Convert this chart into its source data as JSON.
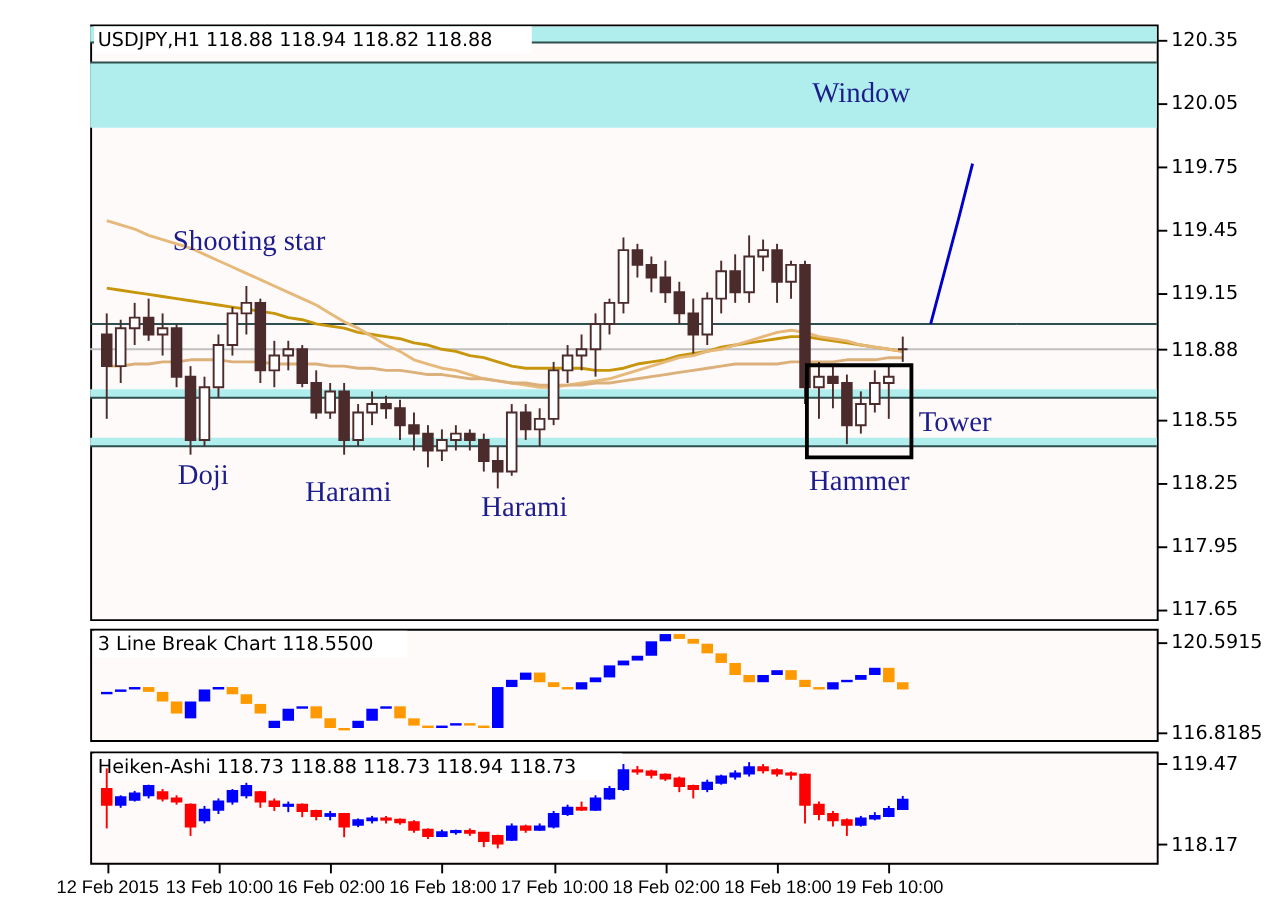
{
  "chart_data": [
    {
      "type": "candlestick",
      "title": "USDJPY,H1  118.88 118.94 118.82 118.88",
      "categories": [
        null,
        null,
        null,
        null,
        null,
        null,
        null,
        null,
        null,
        null,
        null,
        null,
        null,
        null,
        null,
        null,
        null,
        null,
        null,
        null,
        null,
        null,
        null,
        null,
        null,
        null,
        null,
        null,
        null,
        null,
        null,
        null,
        null,
        null,
        null,
        null,
        null,
        null,
        null,
        null,
        null,
        null,
        null,
        null,
        null,
        null,
        null,
        null,
        null,
        null,
        null,
        null,
        null,
        null,
        null,
        null,
        null,
        null,
        null,
        null,
        null,
        null,
        null,
        null,
        null,
        null,
        null,
        null,
        null,
        null,
        null,
        null,
        null,
        null,
        null
      ],
      "ohlc": [
        [
          118.95,
          119.05,
          118.55,
          118.8
        ],
        [
          118.8,
          119.02,
          118.72,
          118.98
        ],
        [
          118.98,
          119.1,
          118.9,
          119.03
        ],
        [
          119.03,
          119.12,
          118.92,
          118.95
        ],
        [
          118.95,
          119.05,
          118.85,
          118.98
        ],
        [
          118.98,
          119.0,
          118.7,
          118.75
        ],
        [
          118.75,
          118.8,
          118.38,
          118.45
        ],
        [
          118.45,
          118.75,
          118.42,
          118.7
        ],
        [
          118.7,
          118.95,
          118.65,
          118.9
        ],
        [
          118.9,
          119.08,
          118.85,
          119.05
        ],
        [
          119.05,
          119.18,
          118.95,
          119.1
        ],
        [
          119.1,
          119.12,
          118.72,
          118.78
        ],
        [
          118.78,
          118.92,
          118.7,
          118.85
        ],
        [
          118.85,
          118.92,
          118.78,
          118.88
        ],
        [
          118.88,
          118.9,
          118.7,
          118.72
        ],
        [
          118.72,
          118.78,
          118.55,
          118.58
        ],
        [
          118.58,
          118.72,
          118.55,
          118.68
        ],
        [
          118.68,
          118.72,
          118.38,
          118.45
        ],
        [
          118.45,
          118.62,
          118.42,
          118.58
        ],
        [
          118.58,
          118.68,
          118.52,
          118.62
        ],
        [
          118.62,
          118.66,
          118.55,
          118.6
        ],
        [
          118.6,
          118.64,
          118.45,
          118.52
        ],
        [
          118.52,
          118.58,
          118.4,
          118.48
        ],
        [
          118.48,
          118.52,
          118.32,
          118.4
        ],
        [
          118.4,
          118.5,
          118.35,
          118.45
        ],
        [
          118.45,
          118.52,
          118.4,
          118.48
        ],
        [
          118.48,
          118.5,
          118.4,
          118.45
        ],
        [
          118.45,
          118.48,
          118.3,
          118.35
        ],
        [
          118.35,
          118.42,
          118.22,
          118.3
        ],
        [
          118.3,
          118.62,
          118.28,
          118.58
        ],
        [
          118.58,
          118.62,
          118.45,
          118.5
        ],
        [
          118.5,
          118.6,
          118.42,
          118.55
        ],
        [
          118.55,
          118.82,
          118.52,
          118.78
        ],
        [
          118.78,
          118.9,
          118.72,
          118.85
        ],
        [
          118.85,
          118.95,
          118.78,
          118.88
        ],
        [
          118.88,
          119.05,
          118.75,
          119.0
        ],
        [
          119.0,
          119.12,
          118.95,
          119.1
        ],
        [
          119.1,
          119.41,
          119.05,
          119.35
        ],
        [
          119.35,
          119.38,
          119.22,
          119.28
        ],
        [
          119.28,
          119.32,
          119.15,
          119.22
        ],
        [
          119.22,
          119.3,
          119.1,
          119.15
        ],
        [
          119.15,
          119.2,
          119.0,
          119.05
        ],
        [
          119.05,
          119.12,
          118.86,
          118.95
        ],
        [
          118.95,
          119.15,
          118.9,
          119.12
        ],
        [
          119.12,
          119.3,
          119.05,
          119.25
        ],
        [
          119.25,
          119.33,
          119.1,
          119.15
        ],
        [
          119.15,
          119.42,
          119.1,
          119.32
        ],
        [
          119.32,
          119.4,
          119.25,
          119.35
        ],
        [
          119.35,
          119.38,
          119.1,
          119.2
        ],
        [
          119.2,
          119.3,
          119.12,
          119.28
        ],
        [
          119.28,
          119.3,
          118.62,
          118.7
        ],
        [
          118.7,
          118.82,
          118.55,
          118.75
        ],
        [
          118.75,
          118.8,
          118.6,
          118.72
        ],
        [
          118.72,
          118.76,
          118.43,
          118.52
        ],
        [
          118.52,
          118.68,
          118.48,
          118.62
        ],
        [
          118.62,
          118.78,
          118.58,
          118.72
        ],
        [
          118.72,
          118.8,
          118.55,
          118.75
        ],
        [
          118.88,
          118.94,
          118.82,
          118.88
        ],
        null,
        null,
        null,
        null,
        null,
        null,
        null,
        null,
        null,
        null,
        null,
        null,
        null,
        null,
        null,
        null,
        null
      ],
      "color": "#4b2b2b",
      "colors": [
        "#4b2b2b",
        "#ffffff",
        "#ffffff",
        "#4b2b2b",
        "#ffffff",
        "#4b2b2b",
        "#4b2b2b",
        "#ffffff",
        "#ffffff",
        "#ffffff",
        "#ffffff",
        "#4b2b2b",
        "#ffffff",
        "#ffffff",
        "#4b2b2b",
        "#4b2b2b",
        "#ffffff",
        "#4b2b2b",
        "#ffffff",
        "#ffffff",
        "#4b2b2b",
        "#4b2b2b",
        "#4b2b2b",
        "#4b2b2b",
        "#ffffff",
        "#ffffff",
        "#4b2b2b",
        "#4b2b2b",
        "#4b2b2b",
        "#ffffff",
        "#4b2b2b",
        "#ffffff",
        "#ffffff",
        "#ffffff",
        "#ffffff",
        "#ffffff",
        "#ffffff",
        "#ffffff",
        "#4b2b2b",
        "#4b2b2b",
        "#4b2b2b",
        "#4b2b2b",
        "#4b2b2b",
        "#ffffff",
        "#ffffff",
        "#4b2b2b",
        "#ffffff",
        "#ffffff",
        "#4b2b2b",
        "#ffffff",
        "#4b2b2b",
        "#ffffff",
        "#4b2b2b",
        "#4b2b2b",
        "#ffffff",
        "#ffffff",
        "#ffffff",
        "#4b2b2b",
        null,
        null,
        null,
        null,
        null,
        null,
        null,
        null,
        null,
        null,
        null,
        null,
        null,
        null,
        null,
        null,
        null
      ],
      "series": [
        {
          "type": "line",
          "color": "#c8960c",
          "values": [
            119.17,
            119.16,
            119.15,
            119.14,
            119.13,
            119.12,
            119.11,
            119.1,
            119.09,
            119.08,
            119.07,
            119.06,
            119.05,
            119.03,
            119.02,
            119.0,
            118.99,
            118.98,
            118.96,
            118.95,
            118.94,
            118.93,
            118.91,
            118.9,
            118.88,
            118.87,
            118.85,
            118.84,
            118.82,
            118.8,
            118.79,
            118.79,
            118.79,
            118.79,
            118.79,
            118.78,
            118.78,
            118.79,
            118.81,
            118.82,
            118.83,
            118.85,
            118.86,
            118.87,
            118.89,
            118.9,
            118.91,
            118.92,
            118.93,
            118.94,
            118.94,
            118.93,
            118.92,
            118.91,
            118.9,
            118.89,
            118.88,
            118.87,
            null,
            null,
            null,
            null,
            null,
            null,
            null,
            null,
            null,
            null,
            null,
            null,
            null,
            null,
            null,
            null,
            null
          ]
        },
        {
          "type": "line",
          "color": "#e6b87a",
          "values": [
            119.49,
            119.47,
            119.45,
            119.42,
            119.4,
            119.38,
            119.36,
            119.33,
            119.3,
            119.27,
            119.24,
            119.21,
            119.18,
            119.15,
            119.12,
            119.09,
            119.05,
            119.01,
            118.98,
            118.94,
            118.9,
            118.87,
            118.83,
            118.81,
            118.79,
            118.78,
            118.76,
            118.74,
            118.73,
            118.72,
            118.71,
            118.7,
            118.7,
            118.71,
            118.72,
            118.73,
            118.74,
            118.76,
            118.78,
            118.8,
            118.82,
            118.84,
            118.85,
            118.87,
            118.88,
            118.9,
            118.92,
            118.94,
            118.96,
            118.97,
            118.96,
            118.94,
            118.93,
            118.92,
            118.9,
            118.89,
            118.88,
            118.87,
            null,
            null,
            null,
            null,
            null,
            null,
            null,
            null,
            null,
            null,
            null,
            null,
            null,
            null,
            null,
            null,
            null
          ]
        },
        {
          "type": "line",
          "color": "#dcb07a",
          "values": [
            118.8,
            118.8,
            118.81,
            118.81,
            118.82,
            118.82,
            118.83,
            118.83,
            118.83,
            118.82,
            118.82,
            118.82,
            118.81,
            118.81,
            118.81,
            118.81,
            118.8,
            118.8,
            118.79,
            118.79,
            118.78,
            118.78,
            118.77,
            118.76,
            118.76,
            118.75,
            118.74,
            118.74,
            118.73,
            118.72,
            118.72,
            118.71,
            118.71,
            118.71,
            118.71,
            118.72,
            118.72,
            118.73,
            118.74,
            118.75,
            118.76,
            118.77,
            118.78,
            118.79,
            118.8,
            118.81,
            118.81,
            118.81,
            118.81,
            118.82,
            118.82,
            118.82,
            118.82,
            118.83,
            118.83,
            118.83,
            118.84,
            118.84,
            null,
            null,
            null,
            null,
            null,
            null,
            null,
            null,
            null,
            null,
            null,
            null,
            null,
            null,
            null,
            null,
            null
          ]
        },
        {
          "type": "line",
          "color": "#0000cd",
          "values": [
            null,
            null,
            null,
            null,
            null,
            null,
            null,
            null,
            null,
            null,
            null,
            null,
            null,
            null,
            null,
            null,
            null,
            null,
            null,
            null,
            null,
            null,
            null,
            null,
            null,
            null,
            null,
            null,
            null,
            null,
            null,
            null,
            null,
            null,
            null,
            null,
            null,
            null,
            null,
            null,
            null,
            null,
            null,
            null,
            null,
            null,
            null,
            null,
            null,
            null,
            null,
            null,
            null,
            null,
            null,
            null,
            null,
            null,
            null,
            119.0,
            119.25,
            119.5,
            119.76,
            null,
            null,
            null,
            null,
            null,
            null,
            null,
            null,
            null,
            null,
            null,
            null
          ]
        }
      ],
      "bands": [
        {
          "axis": "y",
          "from": 120.335,
          "to": 120.41,
          "color": "#b0eeee"
        },
        {
          "axis": "y",
          "from": 119.93,
          "to": 120.24,
          "color": "#b0eeee"
        },
        {
          "axis": "y",
          "from": 118.65,
          "to": 118.69,
          "color": "#b0eeee"
        },
        {
          "axis": "y",
          "from": 118.42,
          "to": 118.46,
          "color": "#b0eeee"
        }
      ],
      "ref_lines": [
        {
          "axis": "y",
          "value": 120.335,
          "color": "#2f4f4f"
        },
        {
          "axis": "y",
          "value": 120.24,
          "color": "#2f4f4f"
        },
        {
          "axis": "y",
          "value": 119.0,
          "color": "#2f4f4f"
        },
        {
          "axis": "y",
          "value": 118.65,
          "color": "#2f4f4f"
        },
        {
          "axis": "y",
          "value": 118.42,
          "color": "#2f4f4f"
        },
        {
          "axis": "y",
          "value": 118.88,
          "color": "#c0c0c0"
        }
      ],
      "annotations": [
        "Window",
        {
          "text": "Shooting star",
          "y": 119.18
        },
        "Doji",
        {
          "text": "Harami",
          "y": 118.38
        },
        "Harami",
        {
          "text": "Hammer",
          "y": 118.43
        },
        "Tower"
      ],
      "ylim": [
        117.6,
        120.42
      ],
      "yticks": [
        120.35,
        120.05,
        119.75,
        119.45,
        119.15,
        118.88,
        118.55,
        118.25,
        117.95,
        117.65
      ],
      "tick_labels": "y"
    },
    {
      "type": "bar",
      "title": "3 Line Break Chart 118.5500",
      "categories": [
        null,
        null,
        null,
        null,
        null,
        null,
        null,
        null,
        null,
        null,
        null,
        null,
        null,
        null,
        null,
        null,
        null,
        null,
        null,
        null,
        null,
        null,
        null,
        null,
        null,
        null,
        null,
        null,
        null,
        null,
        null,
        null,
        null,
        null,
        null,
        null,
        null,
        null,
        null,
        null,
        null,
        null,
        null,
        null,
        null,
        null,
        null,
        null,
        null,
        null,
        null,
        null,
        null,
        null,
        null,
        null,
        null,
        null,
        null,
        null,
        null,
        null,
        null,
        null,
        null,
        null,
        null,
        null,
        null,
        null,
        null,
        null,
        null,
        null,
        null
      ],
      "base": [
        118.4,
        118.5,
        118.6,
        118.7,
        118.5,
        118.1,
        117.4,
        118.1,
        118.6,
        118.7,
        118.4,
        118.0,
        117.0,
        117.3,
        117.8,
        117.9,
        117.4,
        117.0,
        117.0,
        117.3,
        117.8,
        117.9,
        117.4,
        117.1,
        117.0,
        117.1,
        117.2,
        117.1,
        117.0,
        118.7,
        119.0,
        119.3,
        118.9,
        118.7,
        118.6,
        118.9,
        119.1,
        119.6,
        119.8,
        120.0,
        120.6,
        120.9,
        120.7,
        120.5,
        120.1,
        119.7,
        119.2,
        118.9,
        119.2,
        119.4,
        119.0,
        118.7,
        118.6,
        118.9,
        119.0,
        119.2,
        119.5,
        118.9,
        null,
        null,
        null,
        null,
        null,
        null,
        null,
        null,
        null,
        null,
        null,
        null,
        null,
        null,
        null,
        null,
        null
      ],
      "values": [
        0.1,
        0.1,
        0.1,
        -0.2,
        -0.4,
        -0.5,
        0.7,
        0.5,
        0.1,
        -0.3,
        -0.4,
        -0.4,
        0.3,
        0.5,
        0.1,
        -0.5,
        -0.4,
        -0.1,
        0.3,
        0.5,
        0.1,
        -0.5,
        -0.3,
        -0.1,
        0.1,
        0.1,
        -0.1,
        -0.1,
        1.7,
        0.3,
        0.3,
        -0.4,
        -0.2,
        -0.1,
        0.3,
        0.2,
        0.5,
        0.2,
        0.2,
        0.6,
        0.3,
        -0.2,
        -0.2,
        -0.4,
        -0.4,
        -0.5,
        -0.3,
        0.3,
        0.2,
        -0.4,
        -0.3,
        -0.1,
        0.3,
        0.1,
        0.2,
        0.3,
        -0.6,
        -0.3,
        null,
        null,
        null,
        null,
        null,
        null,
        null,
        null,
        null,
        null,
        null,
        null,
        null,
        null,
        null,
        null,
        null
      ],
      "colors": [
        "#0000ff",
        "#0000ff",
        "#0000ff",
        "#ff9900",
        "#ff9900",
        "#ff9900",
        "#0000ff",
        "#0000ff",
        "#0000ff",
        "#ff9900",
        "#ff9900",
        "#ff9900",
        "#0000ff",
        "#0000ff",
        "#0000ff",
        "#ff9900",
        "#ff9900",
        "#ff9900",
        "#0000ff",
        "#0000ff",
        "#0000ff",
        "#ff9900",
        "#ff9900",
        "#ff9900",
        "#0000ff",
        "#0000ff",
        "#ff9900",
        "#ff9900",
        "#0000ff",
        "#0000ff",
        "#0000ff",
        "#ff9900",
        "#ff9900",
        "#ff9900",
        "#0000ff",
        "#0000ff",
        "#0000ff",
        "#0000ff",
        "#0000ff",
        "#0000ff",
        "#0000ff",
        "#ff9900",
        "#ff9900",
        "#ff9900",
        "#ff9900",
        "#ff9900",
        "#ff9900",
        "#0000ff",
        "#0000ff",
        "#ff9900",
        "#ff9900",
        "#ff9900",
        "#0000ff",
        "#0000ff",
        "#0000ff",
        "#0000ff",
        "#ff9900",
        "#ff9900",
        null,
        null,
        null,
        null,
        null,
        null,
        null,
        null,
        null,
        null,
        null,
        null,
        null,
        null,
        null,
        null,
        null
      ],
      "ylim": [
        116.5,
        121.12
      ],
      "yticks": [
        120.5915,
        116.8185
      ],
      "tick_labels": "y"
    },
    {
      "type": "candlestick",
      "title": "Heiken-Ashi 118.73 118.88 118.73 118.94 118.73",
      "categories": [
        "12 Feb 2015",
        null,
        null,
        null,
        null,
        null,
        null,
        null,
        "13 Feb 10:00",
        null,
        null,
        null,
        null,
        null,
        null,
        null,
        "16 Feb 02:00",
        null,
        null,
        null,
        null,
        null,
        null,
        null,
        "16 Feb 18:00",
        null,
        null,
        null,
        null,
        null,
        null,
        null,
        "17 Feb 10:00",
        null,
        null,
        null,
        null,
        null,
        null,
        null,
        "18 Feb 02:00",
        null,
        null,
        null,
        null,
        null,
        null,
        null,
        "18 Feb 18:00",
        null,
        null,
        null,
        null,
        null,
        null,
        null,
        "19 Feb 10:00",
        null,
        null,
        null,
        null,
        null,
        null,
        null,
        null,
        null,
        null,
        null,
        null,
        null,
        null,
        null,
        null,
        null,
        null
      ],
      "ohlc": [
        [
          119.05,
          119.38,
          118.42,
          118.8
        ],
        [
          118.8,
          118.95,
          118.75,
          118.92
        ],
        [
          118.88,
          119.02,
          118.85,
          118.98
        ],
        [
          118.95,
          119.12,
          118.9,
          119.1
        ],
        [
          119.0,
          119.05,
          118.85,
          118.9
        ],
        [
          118.9,
          118.95,
          118.8,
          118.85
        ],
        [
          118.8,
          118.82,
          118.3,
          118.45
        ],
        [
          118.55,
          118.78,
          118.5,
          118.72
        ],
        [
          118.72,
          118.9,
          118.65,
          118.85
        ],
        [
          118.85,
          119.05,
          118.8,
          119.02
        ],
        [
          118.95,
          119.15,
          118.9,
          119.1
        ],
        [
          119.0,
          119.02,
          118.75,
          118.85
        ],
        [
          118.85,
          118.9,
          118.7,
          118.78
        ],
        [
          118.78,
          118.85,
          118.68,
          118.8
        ],
        [
          118.8,
          118.82,
          118.6,
          118.7
        ],
        [
          118.7,
          118.72,
          118.55,
          118.62
        ],
        [
          118.62,
          118.7,
          118.55,
          118.65
        ],
        [
          118.65,
          118.66,
          118.28,
          118.45
        ],
        [
          118.48,
          118.58,
          118.44,
          118.55
        ],
        [
          118.55,
          118.62,
          118.5,
          118.58
        ],
        [
          118.58,
          118.62,
          118.5,
          118.56
        ],
        [
          118.56,
          118.58,
          118.48,
          118.52
        ],
        [
          118.52,
          118.55,
          118.35,
          118.4
        ],
        [
          118.4,
          118.42,
          118.25,
          118.3
        ],
        [
          118.3,
          118.4,
          118.28,
          118.36
        ],
        [
          118.36,
          118.4,
          118.32,
          118.38
        ],
        [
          118.38,
          118.42,
          118.3,
          118.35
        ],
        [
          118.35,
          118.36,
          118.12,
          118.22
        ],
        [
          118.3,
          118.32,
          118.1,
          118.18
        ],
        [
          118.24,
          118.5,
          118.22,
          118.45
        ],
        [
          118.45,
          118.48,
          118.35,
          118.4
        ],
        [
          118.4,
          118.5,
          118.38,
          118.45
        ],
        [
          118.45,
          118.7,
          118.42,
          118.65
        ],
        [
          118.65,
          118.8,
          118.62,
          118.75
        ],
        [
          118.75,
          118.85,
          118.7,
          118.72
        ],
        [
          118.72,
          118.95,
          118.7,
          118.9
        ],
        [
          118.9,
          119.1,
          118.88,
          119.05
        ],
        [
          119.05,
          119.45,
          119.02,
          119.35
        ],
        [
          119.35,
          119.42,
          119.28,
          119.33
        ],
        [
          119.33,
          119.36,
          119.22,
          119.28
        ],
        [
          119.28,
          119.3,
          119.18,
          119.22
        ],
        [
          119.22,
          119.25,
          119.0,
          119.1
        ],
        [
          119.1,
          119.12,
          118.9,
          119.05
        ],
        [
          119.05,
          119.2,
          119.0,
          119.15
        ],
        [
          119.15,
          119.28,
          119.12,
          119.25
        ],
        [
          119.25,
          119.35,
          119.2,
          119.3
        ],
        [
          119.3,
          119.48,
          119.25,
          119.4
        ],
        [
          119.4,
          119.45,
          119.3,
          119.35
        ],
        [
          119.35,
          119.38,
          119.25,
          119.3
        ],
        [
          119.3,
          119.33,
          119.2,
          119.28
        ],
        [
          119.28,
          119.3,
          118.5,
          118.8
        ],
        [
          118.8,
          118.85,
          118.55,
          118.65
        ],
        [
          118.65,
          118.7,
          118.45,
          118.55
        ],
        [
          118.55,
          118.58,
          118.3,
          118.48
        ],
        [
          118.48,
          118.62,
          118.45,
          118.58
        ],
        [
          118.58,
          118.68,
          118.55,
          118.62
        ],
        [
          118.62,
          118.78,
          118.6,
          118.73
        ],
        [
          118.73,
          118.94,
          118.73,
          118.88
        ],
        null,
        null,
        null,
        null,
        null,
        null,
        null,
        null,
        null,
        null,
        null,
        null,
        null,
        null,
        null,
        null,
        null
      ],
      "colors": [
        "#ff0000",
        "#0000ff",
        "#0000ff",
        "#0000ff",
        "#ff0000",
        "#ff0000",
        "#ff0000",
        "#0000ff",
        "#0000ff",
        "#0000ff",
        "#0000ff",
        "#ff0000",
        "#ff0000",
        "#0000ff",
        "#ff0000",
        "#ff0000",
        "#0000ff",
        "#ff0000",
        "#0000ff",
        "#0000ff",
        "#ff0000",
        "#ff0000",
        "#ff0000",
        "#ff0000",
        "#0000ff",
        "#0000ff",
        "#ff0000",
        "#ff0000",
        "#ff0000",
        "#0000ff",
        "#ff0000",
        "#0000ff",
        "#0000ff",
        "#0000ff",
        "#ff0000",
        "#0000ff",
        "#0000ff",
        "#0000ff",
        "#ff0000",
        "#ff0000",
        "#ff0000",
        "#ff0000",
        "#ff0000",
        "#0000ff",
        "#0000ff",
        "#0000ff",
        "#0000ff",
        "#ff0000",
        "#ff0000",
        "#ff0000",
        "#ff0000",
        "#ff0000",
        "#ff0000",
        "#ff0000",
        "#0000ff",
        "#0000ff",
        "#0000ff",
        "#0000ff",
        null,
        null,
        null,
        null,
        null,
        null,
        null,
        null,
        null,
        null,
        null,
        null,
        null,
        null,
        null,
        null,
        null
      ],
      "ylim": [
        117.87,
        119.65
      ],
      "yticks": [
        119.47,
        118.17
      ]
    }
  ]
}
